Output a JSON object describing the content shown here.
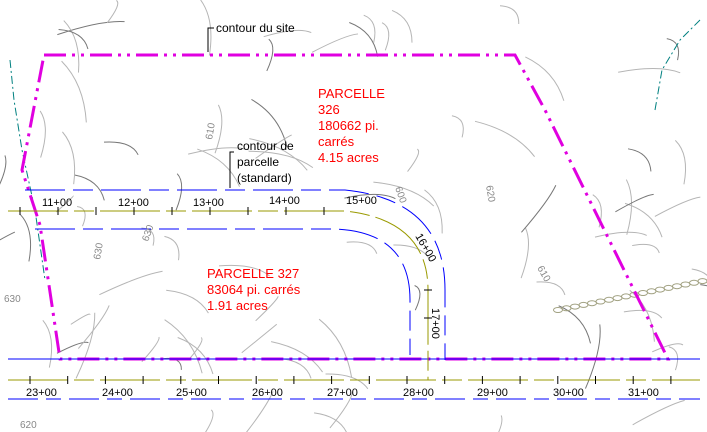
{
  "colors": {
    "site_boundary": "#e000e0",
    "alignment": "#9a9a00",
    "offset": "#0000ff",
    "contour": "#b0b0b0",
    "label_red": "#ff0000"
  },
  "labels": {
    "site_contour": "contour du site",
    "parcel_contour": [
      "contour de",
      "parcelle",
      "(standard)"
    ],
    "parcel_326": [
      "PARCELLE",
      "326",
      "180662 pi.",
      "carrés",
      "4.15 acres"
    ],
    "parcel_327": [
      "PARCELLE 327",
      "83064 pi. carrés",
      "1.91 acres"
    ]
  },
  "stations_top": [
    "11+00",
    "12+00",
    "13+00",
    "14+00",
    "15+00"
  ],
  "stations_curve": [
    "16+00",
    "17+00"
  ],
  "stations_bottom": [
    "23+00",
    "24+00",
    "25+00",
    "26+00",
    "27+00",
    "28+00",
    "29+00",
    "30+00",
    "31+00"
  ],
  "contour_labels": [
    "610",
    "600",
    "620",
    "630",
    "630",
    "610",
    "630",
    "620"
  ]
}
